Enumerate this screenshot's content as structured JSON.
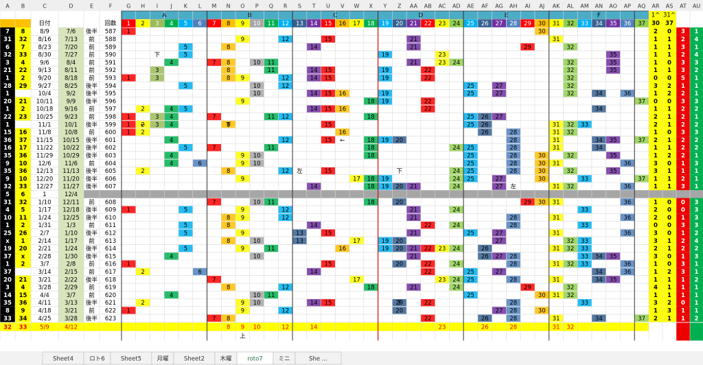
{
  "column_letters": [
    "A",
    "B",
    "C",
    "D",
    "E",
    "F",
    "G",
    "H",
    "I",
    "J",
    "K",
    "L",
    "M",
    "N",
    "O",
    "P",
    "Q",
    "R",
    "S",
    "T",
    "U",
    "V",
    "W",
    "X",
    "Y",
    "Z",
    "AA",
    "AB",
    "AC",
    "AD",
    "AE",
    "AF",
    "AG",
    "AH",
    "AI",
    "AJ",
    "AK",
    "AL",
    "AM",
    "AN",
    "AO",
    "AP",
    "AQ",
    "AR",
    "AS",
    "AT",
    "AU"
  ],
  "groups": [
    "A",
    "B",
    "C",
    "D",
    "E",
    "F"
  ],
  "header": {
    "date": "日付",
    "round": "回数",
    "numbers": [
      1,
      2,
      3,
      4,
      5,
      6,
      7,
      8,
      9,
      10,
      11,
      12,
      13,
      14,
      15,
      16,
      17,
      18,
      19,
      20,
      21,
      22,
      23,
      24,
      25,
      26,
      27,
      28,
      29,
      30,
      31,
      32,
      33,
      34,
      35,
      36,
      37
    ],
    "colors": [
      "#ff0000",
      "#ffff00",
      "#9bbb59",
      "#00b050",
      "#00b0f0",
      "#4f81bd",
      "#ff0000",
      "#ffc000",
      "#ffff00",
      "#a6a6a6",
      "#00b050",
      "#00b0f0",
      "#366092",
      "#7030a0",
      "#ff0000",
      "#ffc000",
      "#ffff00",
      "#00b050",
      "#00b0f0",
      "#366092",
      "#7030a0",
      "#ff0000",
      "#ffff00",
      "#92d050",
      "#00b0f0",
      "#366092",
      "#7030a0",
      "#4f81bd",
      "#ff0000",
      "#ffc000",
      "#ffff00",
      "#92d050",
      "#00b0f0",
      "#366092",
      "#7030a0",
      "#4f81bd",
      "#92d050"
    ],
    "right": [
      "1^",
      "31^"
    ],
    "right_values": [
      30,
      37
    ]
  },
  "rows": [
    {
      "a": 7,
      "b": 8,
      "c": "8/9",
      "d": "7/6",
      "e": "後半",
      "round": 587,
      "cells": [
        1,
        30
      ],
      "right": [
        2,
        0,
        3,
        1
      ]
    },
    {
      "a": 31,
      "b": 32,
      "c": "8/16",
      "d": "7/13",
      "e": "前",
      "round": 588,
      "cells": [
        9,
        12,
        15,
        21,
        31
      ],
      "right": [
        1,
        1,
        2,
        4
      ]
    },
    {
      "a": 6,
      "b": 7,
      "c": "8/23",
      "d": "7/20",
      "e": "前",
      "round": 589,
      "cells": [
        5,
        8,
        14,
        21,
        29,
        32
      ],
      "right": [
        1,
        1,
        3,
        1
      ]
    },
    {
      "a": 32,
      "b": 33,
      "c": "8/30",
      "d": "7/27",
      "e": "前",
      "round": 590,
      "cells": [
        5,
        19,
        23,
        35
      ],
      "notes": {
        "I": "下"
      },
      "right": [
        1,
        1,
        2,
        4
      ]
    },
    {
      "a": 3,
      "b": 4,
      "c": "9/6",
      "d": "8/4",
      "e": "前",
      "round": 591,
      "cells": [
        4,
        7,
        8,
        10,
        11,
        21,
        23,
        24,
        32,
        35
      ],
      "right": [
        1,
        0,
        3,
        3
      ]
    },
    {
      "a": 21,
      "b": 22,
      "c": "9/13",
      "d": "8/11",
      "e": "前",
      "round": 592,
      "cells": [
        3,
        8,
        11,
        14,
        15,
        19,
        22,
        32,
        35
      ],
      "right": [
        1,
        1,
        3,
        2
      ]
    },
    {
      "a": 1,
      "b": 2,
      "c": "9/20",
      "d": "8/18",
      "e": "前",
      "round": 593,
      "cells": [
        1,
        3,
        8,
        9,
        12,
        14,
        15,
        19,
        22,
        32
      ],
      "right": [
        0,
        0,
        5,
        1
      ]
    },
    {
      "a": 28,
      "b": 29,
      "c": "9/27",
      "d": "8/25",
      "e": "後半",
      "round": 594,
      "cells": [
        5,
        10,
        12,
        25,
        27,
        32
      ],
      "right": [
        3,
        2,
        1,
        1
      ]
    },
    {
      "a": 1,
      "c": "10/4",
      "d": "9/2",
      "e": "後半",
      "round": 595,
      "cells": [
        10,
        14,
        15,
        16,
        19,
        25,
        27,
        32,
        34,
        36
      ],
      "right": [
        1,
        2,
        2,
        1
      ]
    },
    {
      "a": 20,
      "b": 21,
      "c": "10/11",
      "d": "9/9",
      "e": "後半",
      "round": 596,
      "cells": [
        9,
        18,
        19,
        22,
        37
      ],
      "right": [
        0,
        0,
        3,
        3
      ]
    },
    {
      "a": 1,
      "b": 2,
      "c": "10/18",
      "d": "9/16",
      "e": "前",
      "round": 597,
      "cells": [
        2,
        4,
        5,
        14,
        15,
        16,
        22,
        34
      ],
      "right": [
        1,
        1,
        2,
        2
      ]
    },
    {
      "a": 22,
      "b": 23,
      "c": "10/25",
      "d": "9/23",
      "e": "前",
      "round": 598,
      "cells": [
        1,
        3,
        4,
        7,
        11,
        12,
        18,
        25,
        26,
        27
      ],
      "right": [
        2,
        1,
        2,
        1
      ]
    },
    {
      "a": 1,
      "c": "11/1",
      "d": "10/1",
      "e": "後半",
      "round": 599,
      "cells": [
        1,
        2,
        3,
        4,
        8,
        15,
        25,
        26,
        31,
        32,
        33
      ],
      "notes": {
        "H": "←",
        "N": "下"
      },
      "right": [
        2,
        1,
        2,
        2
      ]
    },
    {
      "a": 15,
      "b": 16,
      "c": "11/8",
      "d": "10/8",
      "e": "前",
      "round": 600,
      "cells": [
        1,
        2,
        16,
        26,
        28,
        31,
        32
      ],
      "right": [
        1,
        0,
        3,
        3
      ]
    },
    {
      "a": 36,
      "b": 37,
      "c": "11/15",
      "d": "10/15",
      "e": "後半",
      "round": 601,
      "cells": [
        4,
        12,
        15,
        18,
        19,
        20,
        28,
        31,
        34,
        35,
        37
      ],
      "notes": {
        "V": "←"
      },
      "right": [
        2,
        1,
        2,
        2
      ]
    },
    {
      "a": 16,
      "b": 17,
      "c": "11/22",
      "d": "10/22",
      "e": "後半",
      "round": 602,
      "cells": [
        5,
        7,
        11,
        18,
        24,
        25,
        28,
        31,
        34
      ],
      "right": [
        1,
        1,
        2,
        2
      ]
    },
    {
      "a": 35,
      "b": 36,
      "c": "11/29",
      "d": "10/29",
      "e": "後半",
      "round": 603,
      "cells": [
        4,
        9,
        10,
        18,
        25,
        28,
        30,
        32,
        35
      ],
      "right": [
        1,
        2,
        2,
        1
      ]
    },
    {
      "a": 9,
      "b": 10,
      "c": "12/6",
      "d": "11/6",
      "e": "前",
      "round": 604,
      "cells": [
        4,
        6,
        9,
        10,
        25,
        28,
        30,
        31,
        36
      ],
      "right": [
        3,
        0,
        1,
        3
      ]
    },
    {
      "a": 35,
      "b": 36,
      "c": "12/13",
      "d": "11/13",
      "e": "後半",
      "round": 605,
      "cells": [
        2,
        8,
        12,
        15,
        24,
        25,
        28,
        30,
        32,
        35
      ],
      "notes": {
        "S": "左",
        "Z": "下"
      },
      "right": [
        3,
        1,
        1,
        1
      ]
    },
    {
      "a": 9,
      "b": 10,
      "c": "12/20",
      "d": "11/20",
      "e": "後半",
      "round": 606,
      "cells": [
        9,
        17,
        18,
        19,
        24,
        25,
        27,
        30,
        33,
        37
      ],
      "right": [
        1,
        1,
        2,
        1
      ]
    },
    {
      "a": 32,
      "b": 33,
      "c": "12/27",
      "d": "11/27",
      "e": "後半",
      "round": 607,
      "cells": [
        14,
        18,
        19,
        20,
        21,
        24,
        27,
        31,
        32,
        36
      ],
      "notes": {
        "AH": "左"
      },
      "right": [
        1,
        1,
        3,
        1
      ]
    },
    {
      "a": 5,
      "b": 6,
      "c": "1",
      "d": "12/4",
      "separator": true
    },
    {
      "a": 31,
      "b": 32,
      "c": "1/10",
      "d": "12/11",
      "e": "前",
      "round": 608,
      "cells": [
        7,
        10,
        11,
        18,
        20,
        29,
        30,
        31,
        36
      ],
      "right": [
        1,
        0,
        0,
        3
      ]
    },
    {
      "a": 4,
      "b": 5,
      "c": "1/17",
      "d": "12/18",
      "e": "後半",
      "round": 609,
      "cells": [
        1,
        5,
        9,
        12,
        21,
        24,
        33
      ],
      "right": [
        2,
        0,
        0,
        3
      ]
    },
    {
      "a": 10,
      "b": 11,
      "c": "1/24",
      "d": "12/25",
      "e": "後半",
      "round": 610,
      "cells": [
        8,
        9,
        12,
        21,
        28,
        31,
        36
      ],
      "right": [
        2,
        0,
        1,
        3
      ]
    },
    {
      "a": 1,
      "b": 2,
      "c": "1/31",
      "d": "1/3",
      "e": "前",
      "round": 611,
      "cells": [
        5,
        8,
        14,
        22,
        24,
        28,
        33
      ],
      "right": [
        0,
        0,
        3,
        3
      ]
    },
    {
      "a": 25,
      "b": 26,
      "c": "2/7",
      "d": "1/10",
      "e": "後半",
      "round": 612,
      "cells": [
        5,
        9,
        13,
        15,
        21,
        25,
        27,
        31,
        36
      ],
      "right": [
        3,
        0,
        1,
        2
      ]
    },
    {
      "a": "x",
      "b": 1,
      "c": "2/14",
      "d": "1/17",
      "e": "前",
      "round": 613,
      "cells": [
        8,
        10,
        13,
        17,
        19,
        20,
        27,
        32,
        33
      ],
      "right": [
        3,
        1,
        2,
        4
      ]
    },
    {
      "a": 19,
      "b": 20,
      "c": "2/21",
      "d": "1/24",
      "e": "後半",
      "round": 614,
      "cells": [
        5,
        9,
        11,
        16,
        19,
        20,
        21,
        22,
        23,
        24,
        26,
        31,
        32,
        33
      ],
      "right": [
        2,
        1,
        2,
        2
      ]
    },
    {
      "a": 37,
      "b": "x",
      "c": "2/28",
      "d": "1/30",
      "e": "後半",
      "round": 615,
      "cells": [
        4,
        10,
        21,
        26,
        27,
        28,
        33,
        34,
        35
      ],
      "right": [
        3,
        0,
        1,
        3
      ]
    },
    {
      "a": 1,
      "b": 2,
      "c": "3/7",
      "d": "2/8",
      "e": "前",
      "round": 616,
      "cells": [
        1,
        15,
        20,
        22,
        24,
        28,
        31,
        32,
        33,
        36
      ],
      "right": [
        1,
        0,
        3,
        1
      ]
    },
    {
      "a": 37,
      "c": "3/14",
      "d": "2/15",
      "e": "前",
      "round": 617,
      "cells": [
        2,
        6,
        14,
        22,
        25,
        27,
        34,
        36
      ],
      "right": [
        1,
        2,
        3,
        1
      ]
    },
    {
      "a": 20,
      "b": 21,
      "c": "3/21",
      "d": "2/22",
      "e": "後半",
      "round": 618,
      "cells": [
        7,
        17,
        23,
        24,
        25,
        28,
        31,
        34,
        35
      ],
      "right": [
        1,
        1,
        1,
        2
      ]
    },
    {
      "a": 3,
      "b": 4,
      "c": "3/28",
      "d": "2/29",
      "e": "前",
      "round": 619,
      "cells": [
        8,
        12,
        18,
        21,
        24,
        29,
        32
      ],
      "right": [
        4,
        1,
        1,
        1
      ]
    },
    {
      "a": 14,
      "b": 15,
      "c": "4/4",
      "d": "3/7",
      "e": "前",
      "round": 620,
      "cells": [
        4,
        10,
        11,
        25,
        30,
        31,
        32
      ],
      "right": [
        1,
        1,
        1,
        1
      ]
    },
    {
      "a": 35,
      "b": 36,
      "c": "4/11",
      "d": "3/13",
      "e": "後半",
      "round": 621,
      "cells": [
        2,
        9,
        10,
        14,
        15,
        20,
        22,
        28,
        33
      ],
      "notes": {
        "Z": "下"
      },
      "right": [
        3,
        2,
        0,
        1
      ]
    },
    {
      "a": 8,
      "b": 9,
      "c": "4/18",
      "d": "3/21",
      "e": "前",
      "round": 622,
      "cells": [
        1,
        9,
        12,
        20,
        27,
        28,
        30
      ],
      "right": [
        1,
        3,
        1,
        1
      ]
    },
    {
      "a": 33,
      "b": 34,
      "c": "4/25",
      "d": "3/28",
      "e": "後半",
      "round": 623,
      "cells": [
        7,
        8,
        22,
        26,
        28,
        31,
        34,
        37
      ],
      "right": [
        2,
        1,
        1,
        2
      ]
    }
  ],
  "footer": {
    "a": 32,
    "b": 33,
    "c": "5/9",
    "d": "4/12",
    "cells": [
      8,
      9,
      10,
      12,
      14,
      23,
      26,
      28,
      31,
      32
    ],
    "notes": {
      "O": "上"
    }
  },
  "tabs": [
    "Sheet4",
    "ロト6",
    "Sheet5",
    "月曜",
    "Sheet2",
    "木曜",
    "roto7",
    "ミニ",
    "She ..."
  ]
}
